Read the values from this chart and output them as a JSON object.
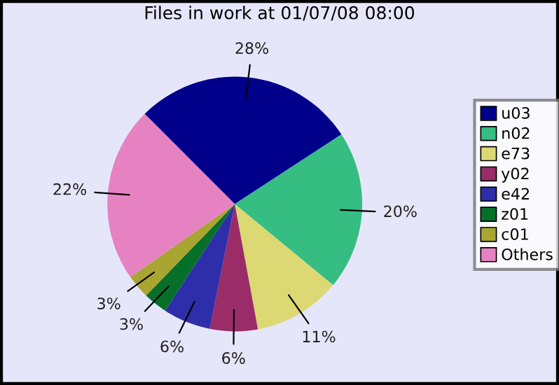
{
  "chart_data": {
    "type": "pie",
    "title": "Files in work at 01/07/08 08:00",
    "categories": [
      "u03",
      "n02",
      "e73",
      "y02",
      "e42",
      "z01",
      "c01",
      "Others"
    ],
    "values": [
      28,
      20,
      11,
      6,
      6,
      3,
      3,
      22
    ],
    "colors": [
      "#00008b",
      "#35bd82",
      "#dcd874",
      "#9a2c68",
      "#2e2eaa",
      "#066f2a",
      "#a8a630",
      "#e682c2"
    ],
    "value_labels": [
      "28%",
      "20%",
      "11%",
      "6%",
      "6%",
      "3%",
      "3%",
      "22%"
    ],
    "legend": "right"
  }
}
